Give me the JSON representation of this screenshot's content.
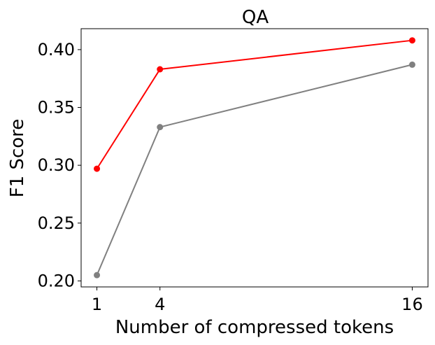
{
  "chart_data": {
    "type": "line",
    "title": "QA",
    "xlabel": "Number of compressed tokens",
    "ylabel": "F1 Score",
    "x": [
      1,
      4,
      16
    ],
    "xticks": [
      "1",
      "4",
      "16"
    ],
    "yticks": [
      "0.20",
      "0.25",
      "0.30",
      "0.35",
      "0.40"
    ],
    "xlim": [
      0.25,
      16.75
    ],
    "ylim": [
      0.1948,
      0.4181
    ],
    "grid": false,
    "series": [
      {
        "color": "#ff0000",
        "values": [
          0.297,
          0.383,
          0.408
        ]
      },
      {
        "color": "#808080",
        "values": [
          0.205,
          0.333,
          0.387
        ]
      }
    ]
  }
}
